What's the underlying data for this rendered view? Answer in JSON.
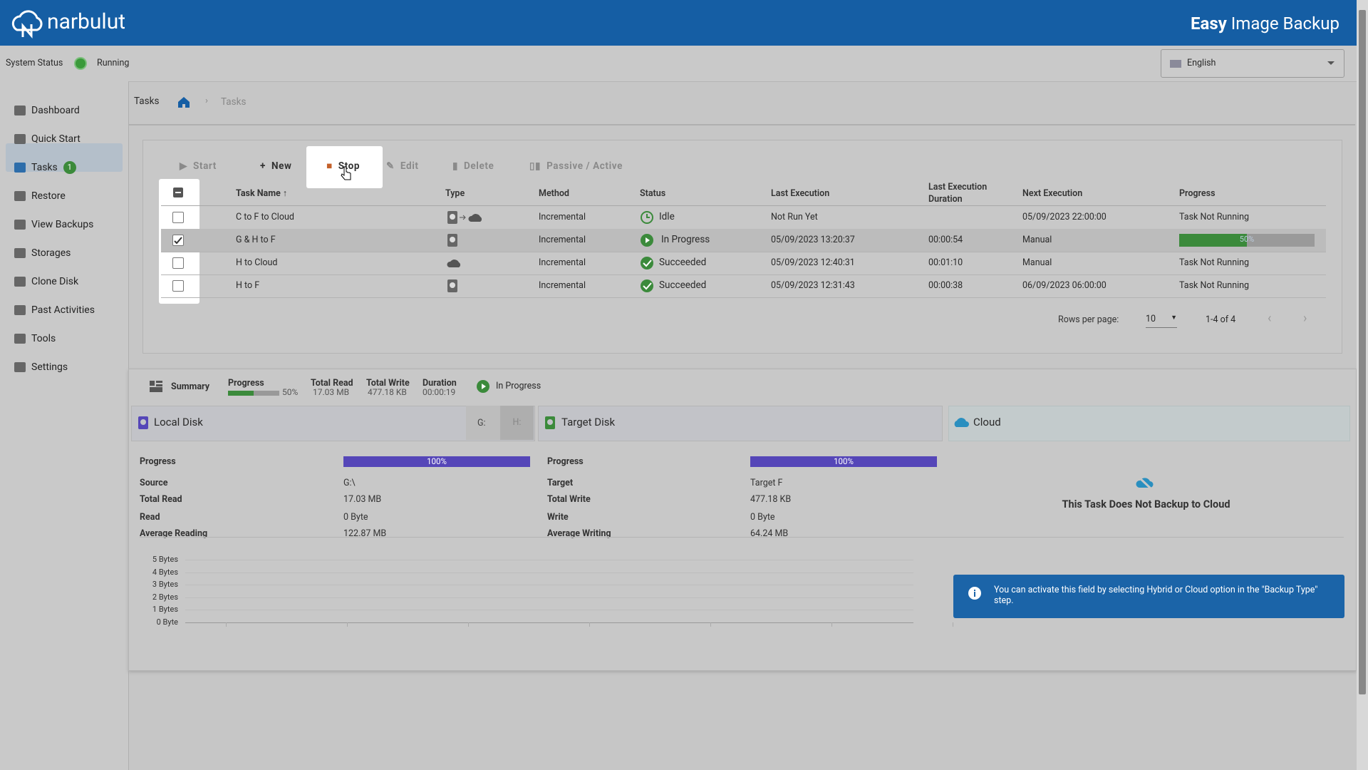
{
  "header": {
    "brand": "narbulut",
    "product_bold": "Easy",
    "product": "Image Backup"
  },
  "status_bar": {
    "label": "System Status",
    "state": "Running",
    "language": "English"
  },
  "sidebar": {
    "items": [
      "Dashboard",
      "Quick Start",
      "Tasks",
      "Restore",
      "View Backups",
      "Storages",
      "Clone Disk",
      "Past Activities",
      "Tools",
      "Settings"
    ],
    "tasks_badge": "1"
  },
  "breadcrumb": {
    "title": "Tasks",
    "current": "Tasks"
  },
  "toolbar": [
    "Start",
    "New",
    "Stop",
    "Edit",
    "Delete",
    "Passive / Active"
  ],
  "table": {
    "columns": [
      "Task Name",
      "Type",
      "Method",
      "Status",
      "Last Execution",
      "Last Execution Duration",
      "Next Execution",
      "Progress"
    ],
    "rows": [
      {
        "name": "C to F to Cloud",
        "method": "Incremental",
        "status": "Idle",
        "last_execution": "Not Run Yet",
        "next_execution": "05/09/2023 22:00:00",
        "progress": "Task Not Running"
      },
      {
        "name": "G & H to F",
        "method": "Incremental",
        "status": "In Progress",
        "last_execution": "05/09/2023 13:20:37",
        "duration": "00:00:54",
        "next_execution": "Manual",
        "progress": "50%"
      },
      {
        "name": "H to Cloud",
        "method": "Incremental",
        "status": "Succeeded",
        "last_execution": "05/09/2023 12:40:31",
        "duration": "00:01:10",
        "next_execution": "Manual",
        "progress": "Task Not Running"
      },
      {
        "name": "H to F",
        "method": "Incremental",
        "status": "Succeeded",
        "last_execution": "05/09/2023 12:31:43",
        "duration": "00:00:38",
        "next_execution": "06/09/2023 06:00:00",
        "progress": "Task Not Running"
      }
    ]
  },
  "pagination": {
    "label": "Rows per page:",
    "rows_per_page": "10",
    "range": "1-4 of 4"
  },
  "summary": {
    "title": "Summary",
    "progress_label": "Progress",
    "progress": "50%",
    "total_read_label": "Total Read",
    "total_read": "17.03 MB",
    "total_write_label": "Total Write",
    "total_write": "477.18 KB",
    "duration_label": "Duration",
    "duration": "00:00:19",
    "status": "In Progress"
  },
  "local_disk": {
    "title": "Local Disk",
    "tabs": [
      "G:",
      "H:"
    ],
    "rows": [
      [
        "Progress",
        "100%"
      ],
      [
        "Source",
        "G:\\"
      ],
      [
        "Total Read",
        "17.03 MB"
      ],
      [
        "Read",
        "0 Byte"
      ],
      [
        "Average Reading",
        "122.87 MB"
      ]
    ]
  },
  "target_disk": {
    "title": "Target Disk",
    "rows": [
      [
        "Progress",
        "100%"
      ],
      [
        "Target",
        "Target F"
      ],
      [
        "Total Write",
        "477.18 KB"
      ],
      [
        "Write",
        "0 Byte"
      ],
      [
        "Average Writing",
        "64.24 MB"
      ]
    ]
  },
  "cloud": {
    "title": "Cloud",
    "message": "This Task Does Not Backup to Cloud",
    "info": "You can activate this field by selecting Hybrid or Cloud option in the \"Backup Type\" step."
  },
  "speed_chart": {
    "yticks": [
      "5 Bytes",
      "4 Bytes",
      "3 Bytes",
      "2 Bytes",
      "1 Bytes",
      "0 Byte"
    ]
  }
}
